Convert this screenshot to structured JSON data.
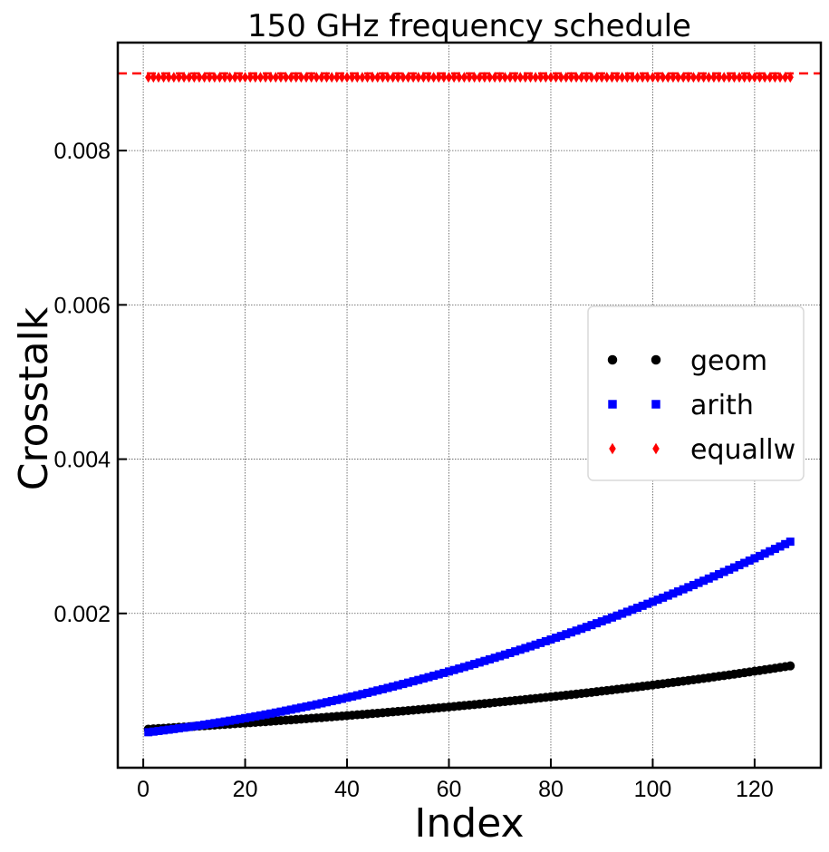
{
  "chart_data": {
    "type": "scatter",
    "title": "150 GHz frequency schedule",
    "xlabel": "Index",
    "ylabel": "Crosstalk",
    "xlim": [
      -5,
      133
    ],
    "ylim": [
      0.0,
      0.0094
    ],
    "xticks": [
      0,
      20,
      40,
      60,
      80,
      100,
      120
    ],
    "yticks": [
      0.002,
      0.004,
      0.006,
      0.008
    ],
    "xtick_labels": [
      "0",
      "20",
      "40",
      "60",
      "80",
      "100",
      "120"
    ],
    "ytick_labels": [
      "0.002",
      "0.004",
      "0.006",
      "0.008"
    ],
    "grid": true,
    "legend_placement": "center-right",
    "hline": {
      "y": 0.009,
      "color": "#ff0000",
      "style": "dashed"
    },
    "x_range": [
      1,
      127
    ],
    "series": [
      {
        "name": "geom",
        "marker": "circle",
        "color": "#000000",
        "start": 0.0005,
        "end": 0.00132,
        "growth": "exponential"
      },
      {
        "name": "arith",
        "marker": "square",
        "color": "#0000ff",
        "start": 0.00046,
        "end": 0.00293,
        "growth": "quadratic"
      },
      {
        "name": "equallw",
        "marker": "diamond",
        "color": "#ff0000",
        "start": 0.00895,
        "end": 0.00895,
        "growth": "constant"
      }
    ]
  }
}
